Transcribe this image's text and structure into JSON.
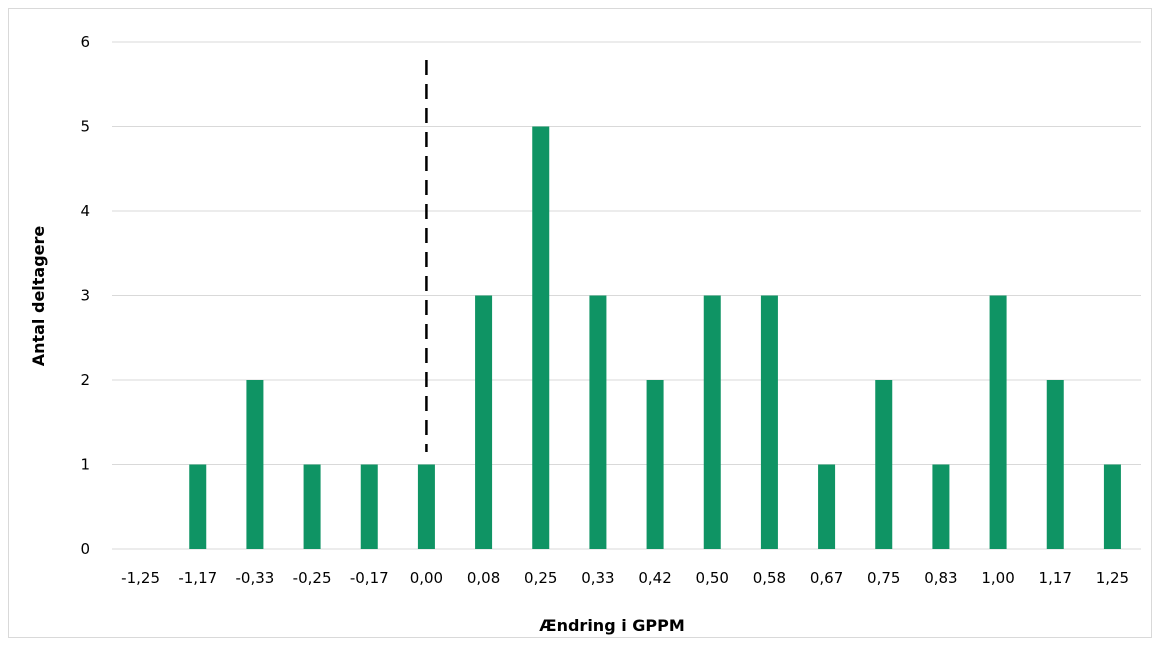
{
  "chart_data": {
    "type": "bar",
    "title": "",
    "xlabel": "Ændring i GPPM",
    "ylabel": "Antal deltagere",
    "categories": [
      "-1,25",
      "-1,17",
      "-0,33",
      "-0,25",
      "-0,17",
      "0,00",
      "0,08",
      "0,25",
      "0,33",
      "0,42",
      "0,50",
      "0,58",
      "0,67",
      "0,75",
      "0,83",
      "1,00",
      "1,17",
      "1,25"
    ],
    "values": [
      0,
      1,
      2,
      1,
      1,
      1,
      3,
      5,
      3,
      2,
      3,
      3,
      1,
      2,
      1,
      3,
      2,
      1
    ],
    "ylim": [
      0,
      6
    ],
    "yticks": [
      "0",
      "1",
      "2",
      "3",
      "4",
      "5",
      "6"
    ],
    "grid": true,
    "legend": "none",
    "reference_line": {
      "category": "0,00",
      "style": "dashed"
    },
    "colors": {
      "bar": "#0f9464",
      "grid": "#d9d9d9",
      "reference_line": "#000000"
    }
  }
}
